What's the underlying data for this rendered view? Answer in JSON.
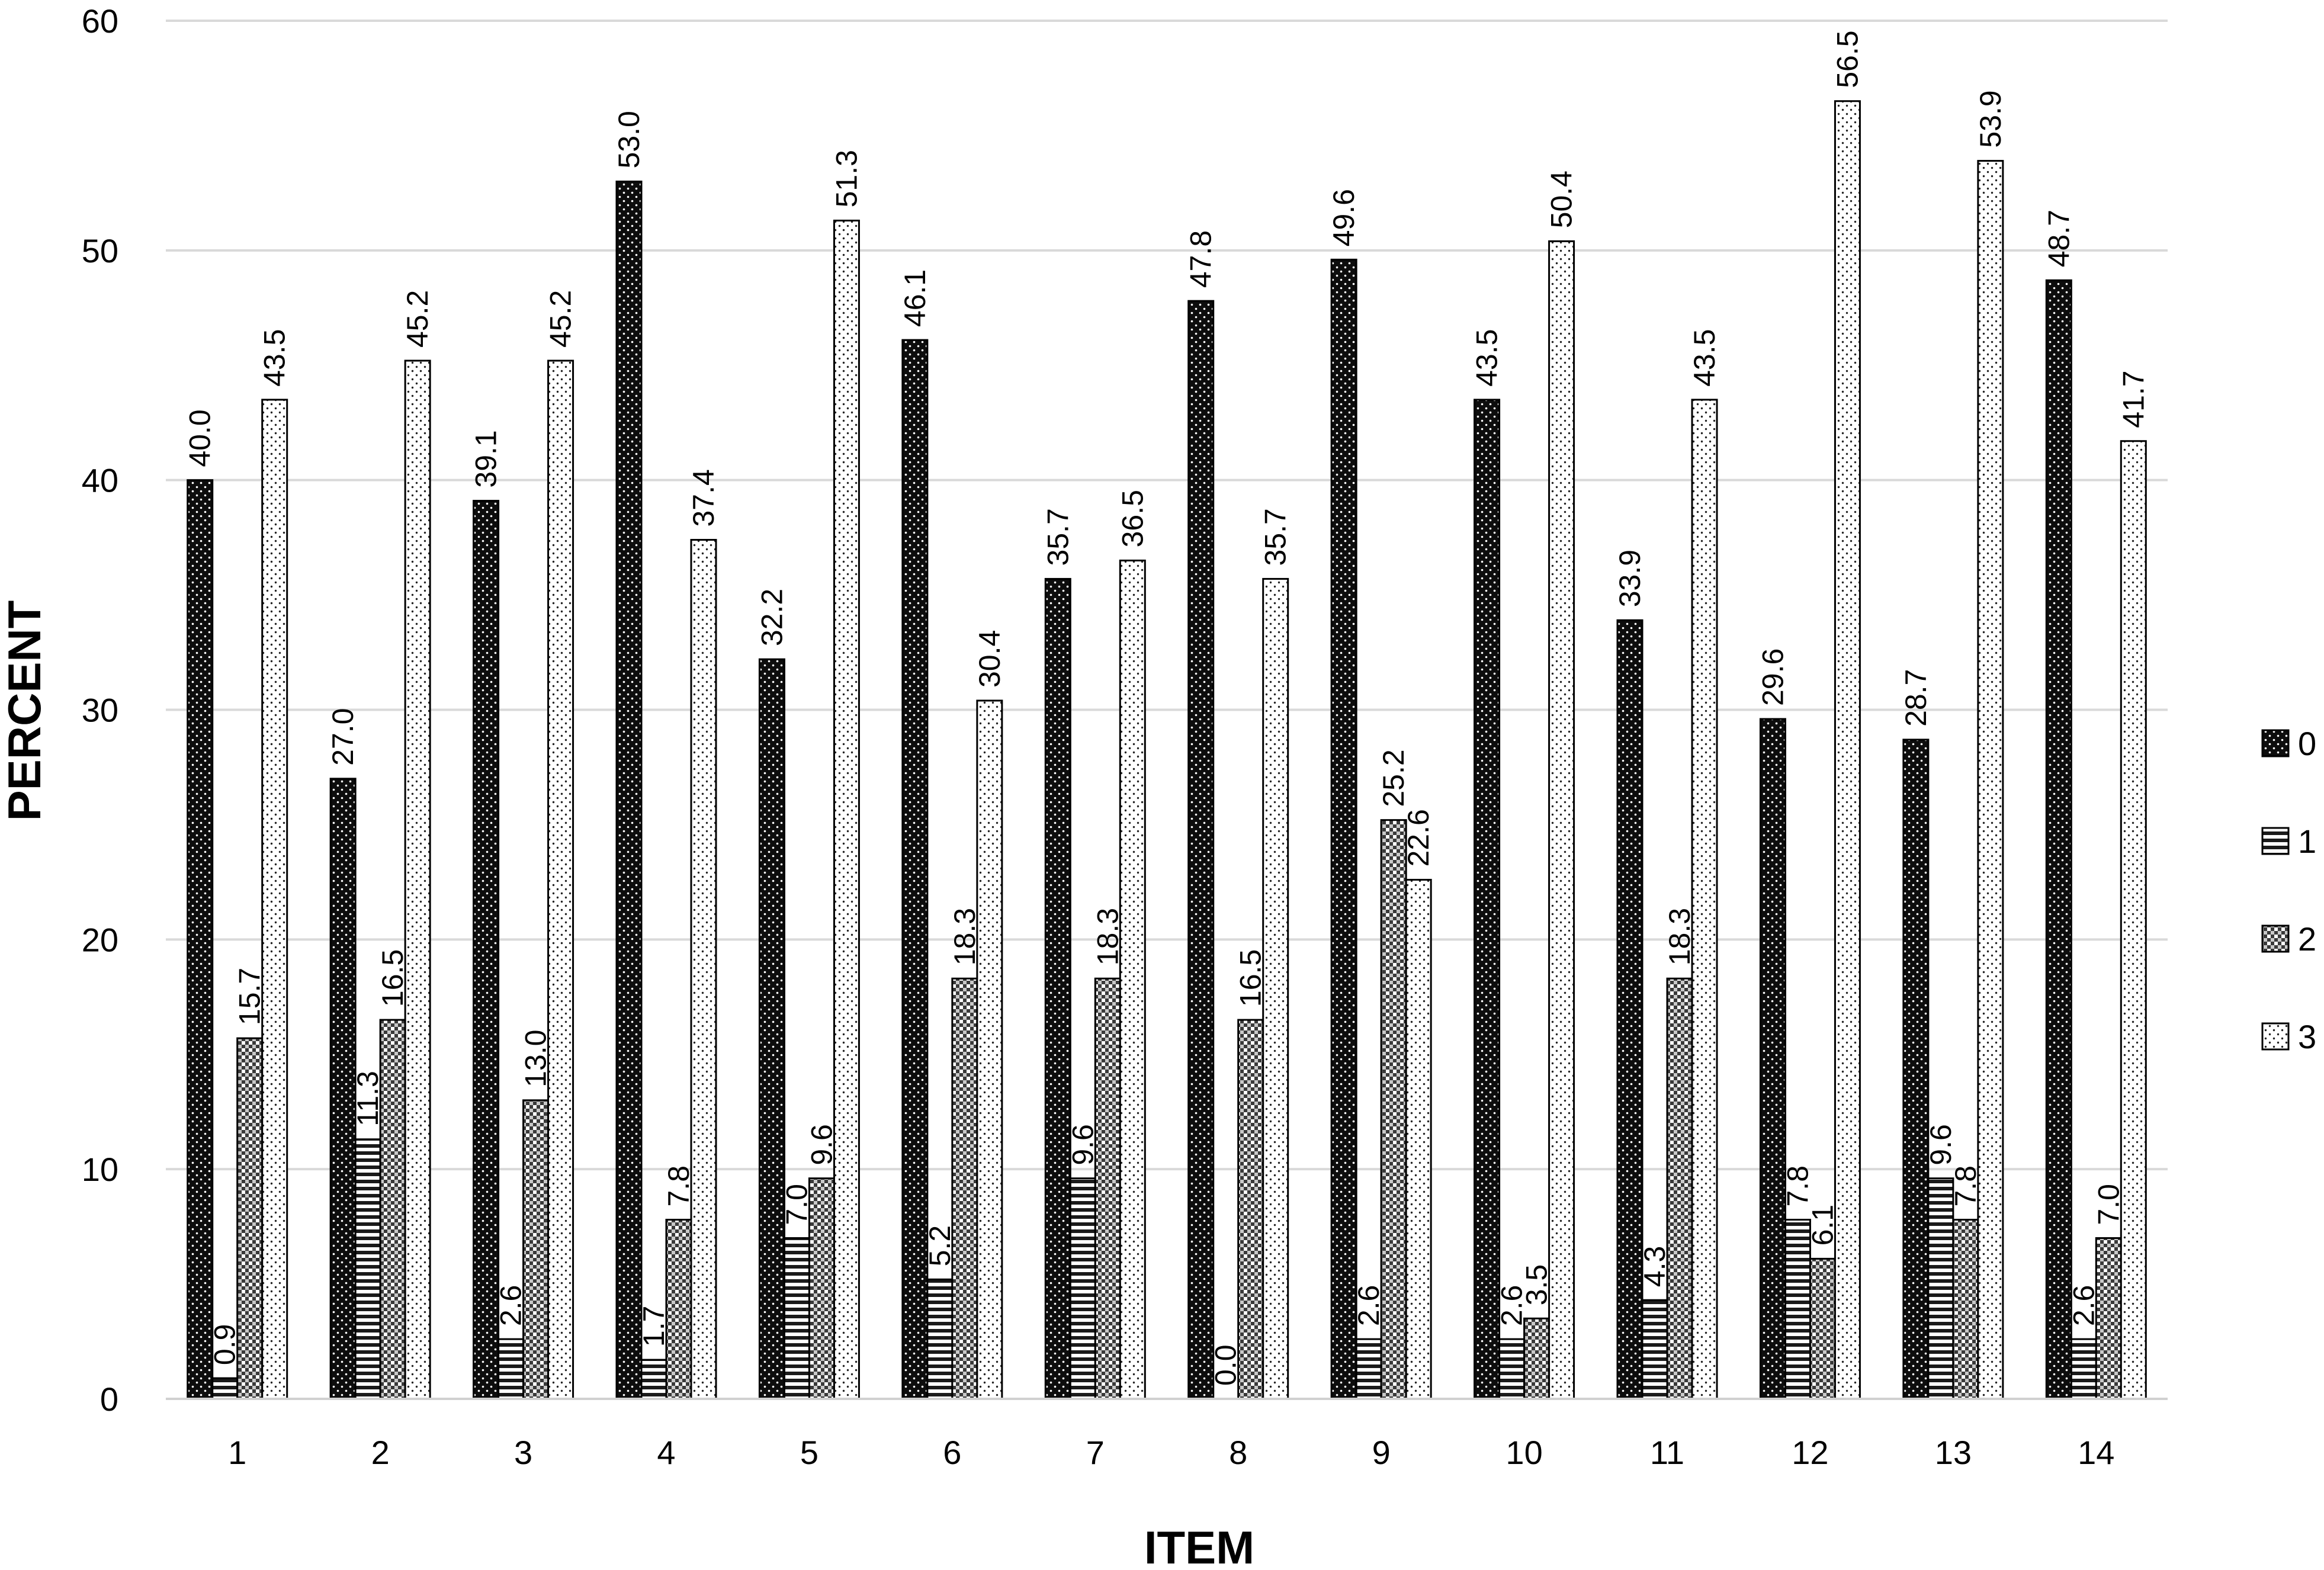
{
  "chart_data": {
    "type": "bar",
    "xlabel": "ITEM",
    "ylabel": "PERCENT",
    "ylim": [
      0,
      60
    ],
    "yticks": [
      0,
      10,
      20,
      30,
      40,
      50,
      60
    ],
    "grid": "horizontal",
    "legend_position": "right",
    "categories": [
      "1",
      "2",
      "3",
      "4",
      "5",
      "6",
      "7",
      "8",
      "9",
      "10",
      "11",
      "12",
      "13",
      "14"
    ],
    "series": [
      {
        "name": "0",
        "pattern": "dark-dotted",
        "values": [
          40.0,
          27.0,
          39.1,
          53.0,
          32.2,
          46.1,
          35.7,
          47.8,
          49.6,
          43.5,
          33.9,
          29.6,
          28.7,
          48.7
        ],
        "labels": [
          "40.0",
          "27.0",
          "39.1",
          "53.0",
          "32.2",
          "46.1",
          "35.7",
          "47.8",
          "49.6",
          "43.5",
          "33.9",
          "29.6",
          "28.7",
          "48.7"
        ]
      },
      {
        "name": "1",
        "pattern": "horizontal-stripes",
        "values": [
          0.9,
          11.3,
          2.6,
          1.7,
          7.0,
          5.2,
          9.6,
          0.0,
          2.6,
          2.6,
          4.3,
          7.8,
          9.6,
          2.6
        ],
        "labels": [
          "0.9",
          "11.3",
          "2.6",
          "1.7",
          "7.0",
          "5.2",
          "9.6",
          "0.0",
          "2.6",
          "2.6",
          "4.3",
          "7.8",
          "9.6",
          "2.6"
        ]
      },
      {
        "name": "2",
        "pattern": "checkered",
        "values": [
          15.7,
          16.5,
          13.0,
          7.8,
          9.6,
          18.3,
          18.3,
          16.5,
          25.2,
          3.5,
          18.3,
          6.1,
          7.8,
          7.0
        ],
        "labels": [
          "15.7",
          "16.5",
          "13.0",
          "7.8",
          "9.6",
          "18.3",
          "18.3",
          "16.5",
          "25.2",
          "3.5",
          "18.3",
          "6.1",
          "7.8",
          "7.0"
        ]
      },
      {
        "name": "3",
        "pattern": "light-dotted",
        "values": [
          43.5,
          45.2,
          45.2,
          37.4,
          51.3,
          30.4,
          36.5,
          35.7,
          22.6,
          50.4,
          43.5,
          56.5,
          53.9,
          41.7
        ],
        "labels": [
          "43.5",
          "45.2",
          "45.2",
          "37.4",
          "51.3",
          "30.4",
          "36.5",
          "35.7",
          "22.6",
          "50.4",
          "43.5",
          "56.5",
          "53.9",
          "41.7"
        ]
      }
    ]
  }
}
